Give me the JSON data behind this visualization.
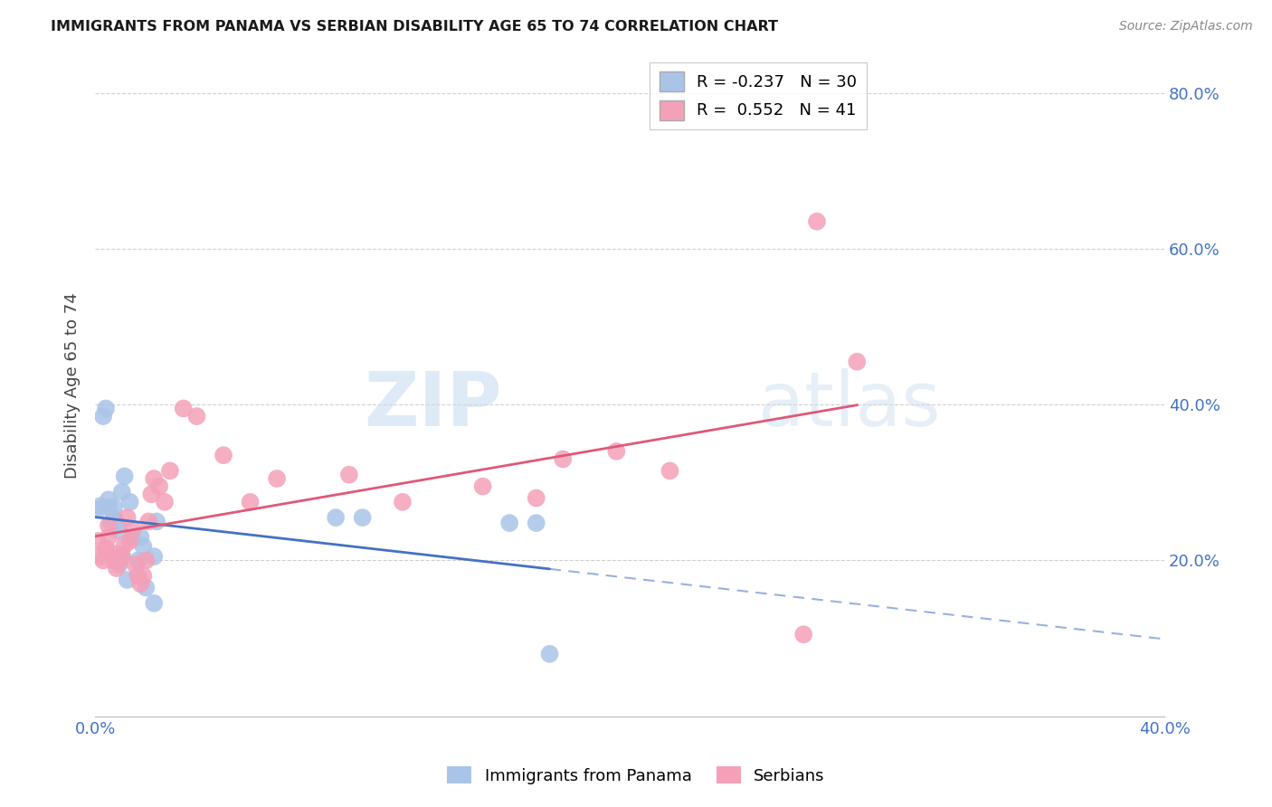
{
  "title": "IMMIGRANTS FROM PANAMA VS SERBIAN DISABILITY AGE 65 TO 74 CORRELATION CHART",
  "source": "Source: ZipAtlas.com",
  "ylabel_label": "Disability Age 65 to 74",
  "xlim": [
    0.0,
    0.4
  ],
  "ylim": [
    0.0,
    0.85
  ],
  "x_ticks": [
    0.0,
    0.05,
    0.1,
    0.15,
    0.2,
    0.25,
    0.3,
    0.35,
    0.4
  ],
  "y_ticks": [
    0.0,
    0.2,
    0.4,
    0.6,
    0.8
  ],
  "right_y_tick_labels": [
    "",
    "20.0%",
    "40.0%",
    "60.0%",
    "80.0%"
  ],
  "grid_color": "#d0d0d0",
  "background_color": "#ffffff",
  "panama_color": "#aac4e8",
  "serbia_color": "#f4a0b8",
  "panama_line_color": "#4472c4",
  "serbia_line_color": "#e05878",
  "panama_r": -0.237,
  "panama_n": 30,
  "serbia_r": 0.552,
  "serbia_n": 41,
  "panama_points_x": [
    0.001,
    0.002,
    0.003,
    0.004,
    0.005,
    0.005,
    0.006,
    0.007,
    0.007,
    0.008,
    0.009,
    0.009,
    0.01,
    0.01,
    0.011,
    0.012,
    0.013,
    0.014,
    0.016,
    0.017,
    0.018,
    0.019,
    0.022,
    0.022,
    0.023,
    0.09,
    0.1,
    0.155,
    0.165,
    0.17
  ],
  "panama_points_y": [
    0.265,
    0.27,
    0.385,
    0.395,
    0.278,
    0.268,
    0.248,
    0.268,
    0.255,
    0.248,
    0.238,
    0.195,
    0.208,
    0.288,
    0.308,
    0.175,
    0.275,
    0.228,
    0.2,
    0.23,
    0.218,
    0.165,
    0.145,
    0.205,
    0.25,
    0.255,
    0.255,
    0.248,
    0.248,
    0.08
  ],
  "serbia_points_x": [
    0.001,
    0.002,
    0.003,
    0.004,
    0.005,
    0.005,
    0.006,
    0.007,
    0.008,
    0.009,
    0.01,
    0.011,
    0.012,
    0.013,
    0.014,
    0.015,
    0.016,
    0.017,
    0.018,
    0.019,
    0.02,
    0.021,
    0.022,
    0.024,
    0.026,
    0.028,
    0.033,
    0.038,
    0.048,
    0.058,
    0.068,
    0.095,
    0.115,
    0.145,
    0.165,
    0.175,
    0.195,
    0.215,
    0.27,
    0.285,
    0.265
  ],
  "serbia_points_y": [
    0.225,
    0.205,
    0.2,
    0.215,
    0.245,
    0.23,
    0.21,
    0.2,
    0.19,
    0.2,
    0.205,
    0.22,
    0.255,
    0.225,
    0.24,
    0.195,
    0.18,
    0.17,
    0.18,
    0.2,
    0.25,
    0.285,
    0.305,
    0.295,
    0.275,
    0.315,
    0.395,
    0.385,
    0.335,
    0.275,
    0.305,
    0.31,
    0.275,
    0.295,
    0.28,
    0.33,
    0.34,
    0.315,
    0.635,
    0.455,
    0.105
  ]
}
